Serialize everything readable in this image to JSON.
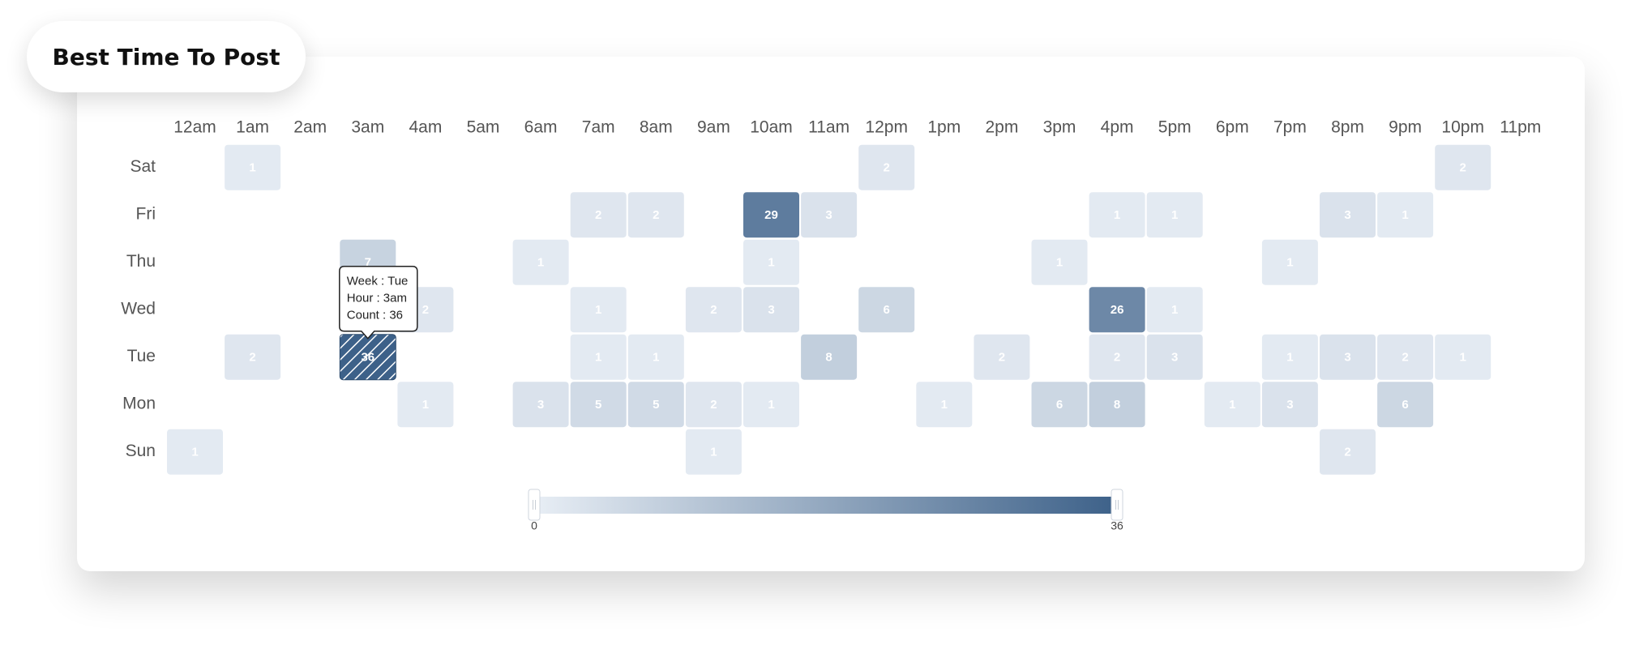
{
  "chart_data": {
    "type": "heatmap",
    "title": "Best Time To Post",
    "categories": [
      "12am",
      "1am",
      "2am",
      "3am",
      "4am",
      "5am",
      "6am",
      "7am",
      "8am",
      "9am",
      "10am",
      "11am",
      "12pm",
      "1pm",
      "2pm",
      "3pm",
      "4pm",
      "5pm",
      "6pm",
      "7pm",
      "8pm",
      "9pm",
      "10pm",
      "11pm"
    ],
    "series": [
      {
        "name": "Sat",
        "values": [
          null,
          1,
          null,
          null,
          null,
          null,
          null,
          null,
          null,
          null,
          null,
          null,
          2,
          null,
          null,
          null,
          null,
          null,
          null,
          null,
          null,
          null,
          2,
          null
        ]
      },
      {
        "name": "Fri",
        "values": [
          null,
          null,
          null,
          null,
          null,
          null,
          null,
          2,
          2,
          null,
          29,
          3,
          null,
          null,
          null,
          null,
          1,
          1,
          null,
          null,
          3,
          1,
          null,
          null
        ]
      },
      {
        "name": "Thu",
        "values": [
          null,
          null,
          null,
          7,
          null,
          null,
          1,
          null,
          null,
          null,
          1,
          null,
          null,
          null,
          null,
          1,
          null,
          null,
          null,
          1,
          null,
          null,
          null,
          null
        ]
      },
      {
        "name": "Wed",
        "values": [
          null,
          null,
          null,
          null,
          2,
          null,
          null,
          1,
          null,
          2,
          3,
          null,
          6,
          null,
          null,
          null,
          26,
          1,
          null,
          null,
          null,
          null,
          null,
          null
        ]
      },
      {
        "name": "Tue",
        "values": [
          null,
          2,
          null,
          36,
          null,
          null,
          null,
          1,
          1,
          null,
          null,
          8,
          null,
          null,
          2,
          null,
          2,
          3,
          null,
          1,
          3,
          2,
          1,
          null
        ]
      },
      {
        "name": "Mon",
        "values": [
          null,
          null,
          null,
          null,
          1,
          null,
          3,
          5,
          5,
          2,
          1,
          null,
          null,
          1,
          null,
          6,
          8,
          null,
          1,
          3,
          null,
          6,
          null,
          null
        ]
      },
      {
        "name": "Sun",
        "values": [
          1,
          null,
          null,
          null,
          null,
          null,
          null,
          null,
          null,
          1,
          null,
          null,
          null,
          null,
          null,
          null,
          null,
          null,
          null,
          null,
          2,
          null,
          null,
          null
        ]
      }
    ],
    "visual_map": {
      "min": 0,
      "max": 36,
      "colors": [
        "#e8eef5",
        "#3d6189"
      ]
    },
    "tooltip": {
      "lines": [
        "Week : Tue",
        "Hour : 3am",
        "Count : 36"
      ]
    }
  }
}
